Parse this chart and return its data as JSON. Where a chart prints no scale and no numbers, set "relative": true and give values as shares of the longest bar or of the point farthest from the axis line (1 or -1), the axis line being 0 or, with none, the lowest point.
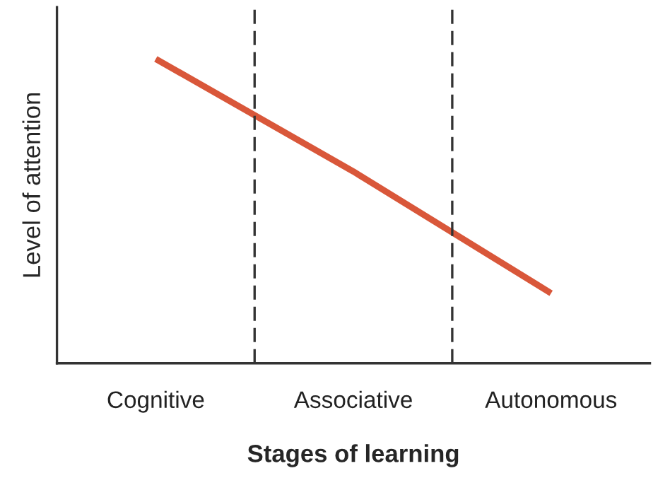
{
  "chart_data": {
    "type": "line",
    "relative": true,
    "xlabel": "Stages of learning",
    "ylabel": "Level of attention",
    "categories": [
      "Cognitive",
      "Associative",
      "Autonomous"
    ],
    "series": [
      {
        "color": "#d9573a",
        "values": [
          1,
          0.63,
          0.23
        ]
      }
    ],
    "grid": false,
    "legend": false,
    "marker": "none",
    "line_style": "solid"
  }
}
